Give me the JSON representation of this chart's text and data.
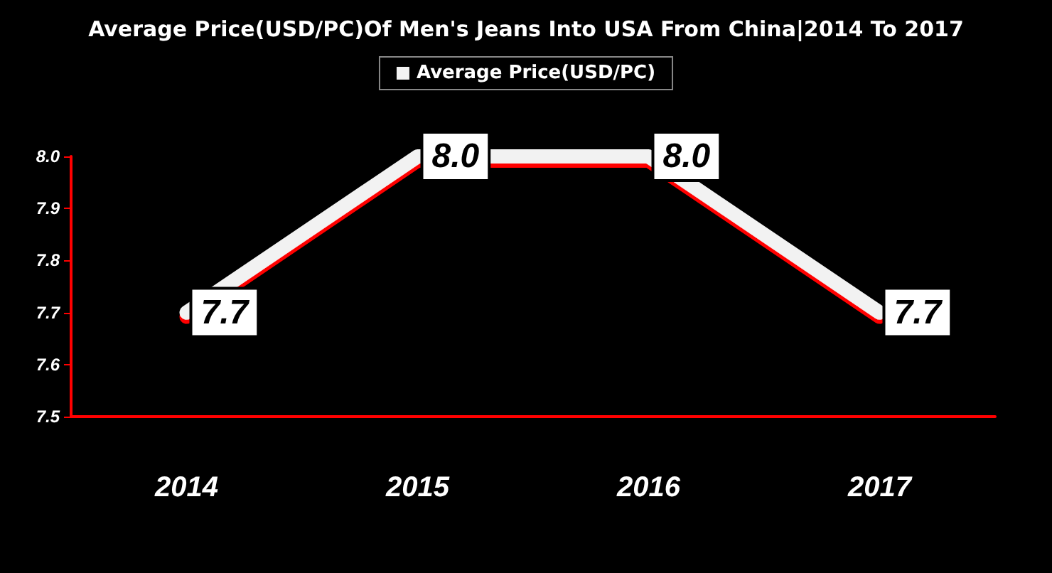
{
  "chart_data": {
    "type": "line",
    "title": "Average Price(USD/PC)Of Men's Jeans Into USA From China|2014 To 2017",
    "categories": [
      "2014",
      "2015",
      "2016",
      "2017"
    ],
    "series": [
      {
        "name": "Average Price(USD/PC)",
        "color": "#f2f2f2",
        "values": [
          7.7,
          8.0,
          8.0,
          7.7
        ]
      }
    ],
    "ylim": [
      7.5,
      8.0
    ],
    "yticks": [
      7.5,
      7.6,
      7.7,
      7.8,
      7.9,
      {
        "value": 8.0,
        "label": "8.0"
      }
    ],
    "value_labels": [
      "7.7",
      "8.0",
      "8.0",
      "7.7"
    ],
    "grid": false,
    "legend": "top",
    "marker": "none",
    "line_style": "solid"
  }
}
